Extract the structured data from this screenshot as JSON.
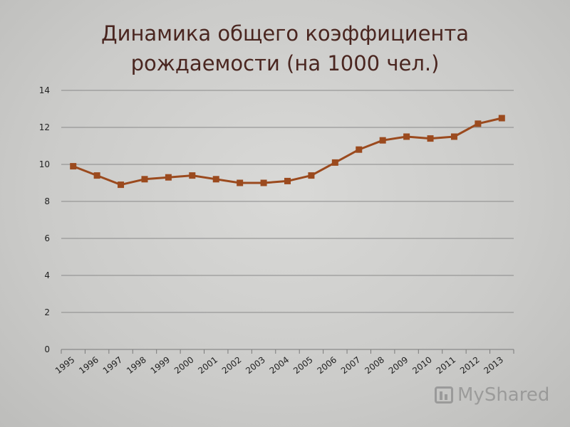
{
  "title_lines": [
    "Динамика общего коэффициента",
    "рождаемости (на 1000 чел.)"
  ],
  "watermark": {
    "text": "MyShared",
    "icon": "presentation-board-icon"
  },
  "chart_data": {
    "type": "line",
    "title": "Динамика общего коэффициента рождаемости (на 1000 чел.)",
    "xlabel": "",
    "ylabel": "",
    "x": [
      "1995",
      "1996",
      "1997",
      "1998",
      "1999",
      "2000",
      "2001",
      "2002",
      "2003",
      "2004",
      "2005",
      "2006",
      "2007",
      "2008",
      "2009",
      "2010",
      "2011",
      "2012",
      "2013"
    ],
    "series": [
      {
        "name": "",
        "color": "#9b4a1e",
        "values": [
          9.9,
          9.4,
          8.9,
          9.2,
          9.3,
          9.4,
          9.2,
          9.0,
          9.0,
          9.1,
          9.4,
          10.1,
          10.8,
          11.3,
          11.5,
          11.4,
          11.5,
          12.2,
          12.5
        ]
      }
    ],
    "ylim": [
      0,
      14
    ],
    "yticks": [
      0,
      2,
      4,
      6,
      8,
      10,
      12,
      14
    ],
    "grid": true,
    "legend": "none"
  }
}
